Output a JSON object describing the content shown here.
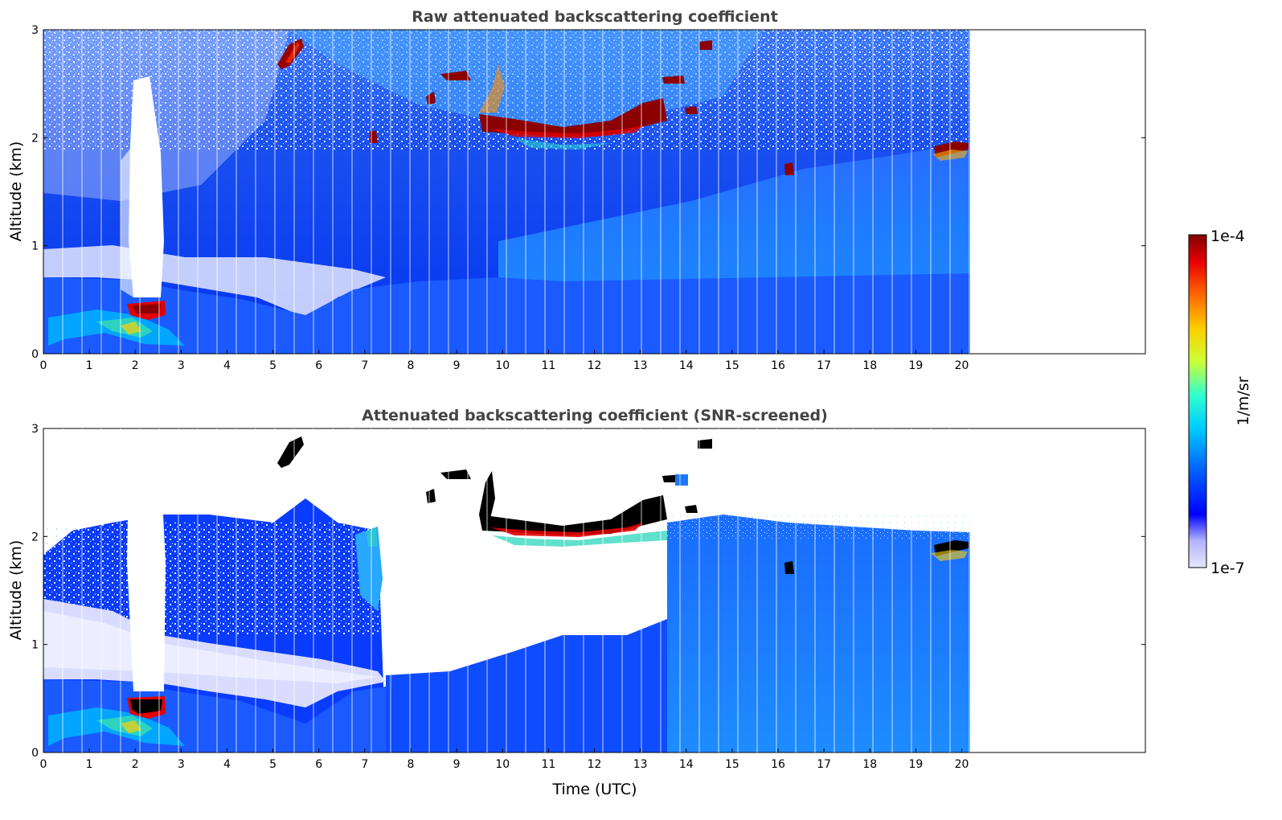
{
  "chart_data": [
    {
      "type": "heatmap",
      "title": "Raw attenuated backscattering coefficient",
      "xlabel": "",
      "ylabel": "Altitude (km)",
      "xlim": [
        0,
        24
      ],
      "ylim": [
        0,
        3
      ],
      "xticks": [
        "0",
        "1",
        "2",
        "3",
        "4",
        "5",
        "6",
        "7",
        "8",
        "9",
        "10",
        "11",
        "12",
        "13",
        "14",
        "15",
        "16",
        "17",
        "18",
        "19",
        "20"
      ],
      "yticks": [
        "0",
        "1",
        "2",
        "3"
      ],
      "data_extent_hours": 20.2,
      "features": [
        {
          "label": "boundary layer aerosol",
          "time": [
            0,
            20.2
          ],
          "altitude_km": [
            0,
            0.7
          ]
        },
        {
          "label": "low cloud",
          "time": [
            1.8,
            2.6
          ],
          "altitude_km": [
            0.35,
            0.5
          ]
        },
        {
          "label": "precipitation signal gap",
          "time": [
            1.9,
            2.5
          ],
          "altitude_km": [
            0.5,
            2.5
          ]
        },
        {
          "label": "cloud",
          "time": [
            5.1,
            5.7
          ],
          "altitude_km": [
            2.6,
            2.9
          ]
        },
        {
          "label": "cloud layer",
          "time": [
            9.5,
            13.6
          ],
          "altitude_km": [
            1.95,
            2.35
          ]
        },
        {
          "label": "cloud",
          "time": [
            16.1,
            16.3
          ],
          "altitude_km": [
            1.65,
            1.75
          ]
        },
        {
          "label": "cloud",
          "time": [
            19.1,
            20.1
          ],
          "altitude_km": [
            1.8,
            1.95
          ]
        }
      ]
    },
    {
      "type": "heatmap",
      "title": "Attenuated backscattering coefficient (SNR-screened)",
      "xlabel": "Time (UTC)",
      "ylabel": "Altitude (km)",
      "xlim": [
        0,
        24
      ],
      "ylim": [
        0,
        3
      ],
      "xticks": [
        "0",
        "1",
        "2",
        "3",
        "4",
        "5",
        "6",
        "7",
        "8",
        "9",
        "10",
        "11",
        "12",
        "13",
        "14",
        "15",
        "16",
        "17",
        "18",
        "19",
        "20"
      ],
      "yticks": [
        "0",
        "1",
        "2",
        "3"
      ],
      "data_extent_hours": 20.2
    }
  ],
  "colorbar": {
    "max_label": "1e-4",
    "min_label": "1e-7",
    "unit_label": "1/m/sr",
    "colors": [
      "#e6e6ff",
      "#b3b3ff",
      "#0000ff",
      "#0066ff",
      "#00ccff",
      "#33ffcc",
      "#ccff33",
      "#ffcc00",
      "#ff6600",
      "#e60000",
      "#800000"
    ]
  },
  "palette": {
    "low": "#e6e6ff",
    "blue": "#0000ee",
    "sky": "#1e90ff",
    "cyan": "#00c8ff",
    "teal": "#3cd0c0",
    "dark_red": "#8b0000",
    "black": "#000000",
    "title": "#444444"
  }
}
